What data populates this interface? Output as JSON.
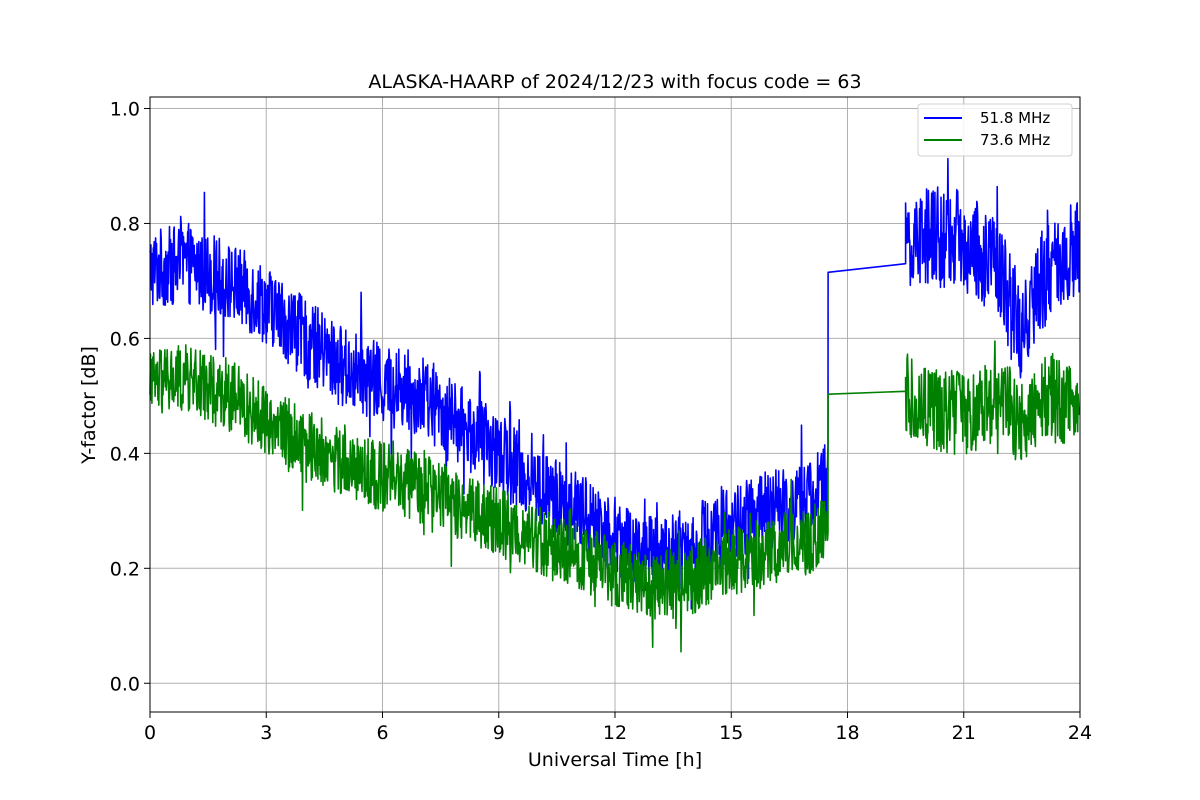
{
  "chart_data": {
    "type": "line",
    "title": "ALASKA-HAARP of 2024/12/23 with focus code = 63",
    "xlabel": "Universal Time [h]",
    "ylabel": "Y-factor [dB]",
    "xlim": [
      0,
      24
    ],
    "ylim": [
      -0.05,
      1.02
    ],
    "xticks": [
      0,
      3,
      6,
      9,
      12,
      15,
      18,
      21,
      24
    ],
    "yticks": [
      0.0,
      0.2,
      0.4,
      0.6,
      0.8,
      1.0
    ],
    "xtick_labels": [
      "0",
      "3",
      "6",
      "9",
      "12",
      "15",
      "18",
      "21",
      "24"
    ],
    "ytick_labels": [
      "0.0",
      "0.2",
      "0.4",
      "0.6",
      "0.8",
      "1.0"
    ],
    "grid": true,
    "legend_position": "top-right",
    "series": [
      {
        "name": "51.8 MHz",
        "color": "#0000ff",
        "x": [
          0,
          1,
          2,
          3,
          4,
          5,
          6,
          7,
          8,
          9,
          10,
          11,
          12,
          13,
          14,
          15,
          16,
          17,
          17.5,
          17.5,
          19.5,
          19.5,
          20,
          21,
          22,
          22.5,
          23,
          24
        ],
        "y": [
          0.72,
          0.73,
          0.7,
          0.66,
          0.6,
          0.55,
          0.52,
          0.5,
          0.45,
          0.4,
          0.34,
          0.3,
          0.26,
          0.22,
          0.24,
          0.28,
          0.3,
          0.32,
          0.35,
          0.715,
          0.73,
          0.75,
          0.78,
          0.77,
          0.72,
          0.6,
          0.7,
          0.76
        ],
        "noise": 0.07
      },
      {
        "name": "73.6 MHz",
        "color": "#008000",
        "x": [
          0,
          1,
          2,
          3,
          4,
          5,
          6,
          7,
          8,
          9,
          10,
          11,
          12,
          13,
          14,
          15,
          16,
          17,
          17.5,
          17.5,
          19.5,
          19.5,
          20,
          21,
          22,
          22.5,
          23,
          24
        ],
        "y": [
          0.52,
          0.53,
          0.5,
          0.46,
          0.42,
          0.38,
          0.36,
          0.34,
          0.31,
          0.28,
          0.25,
          0.22,
          0.19,
          0.17,
          0.18,
          0.21,
          0.23,
          0.25,
          0.27,
          0.503,
          0.508,
          0.5,
          0.48,
          0.47,
          0.5,
          0.45,
          0.5,
          0.48
        ],
        "noise": 0.06
      }
    ]
  }
}
